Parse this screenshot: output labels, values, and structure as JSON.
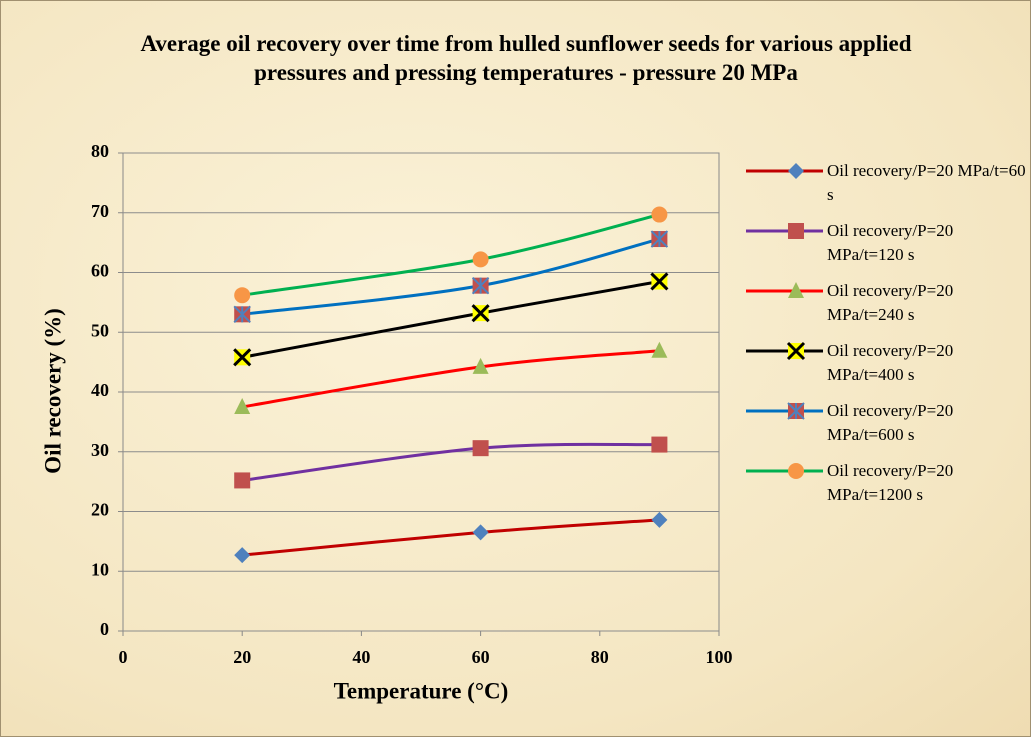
{
  "chart_data": {
    "type": "line",
    "title": "Average oil recovery over time from hulled sunflower seeds for various applied pressures and pressing temperatures - pressure 20 MPa",
    "x_label": "Temperature (°C)",
    "y_label": "Oil recovery (%)",
    "x": [
      20,
      60,
      90
    ],
    "xlim": [
      0,
      100
    ],
    "xticks": [
      0,
      20,
      40,
      60,
      80,
      100
    ],
    "ylim": [
      0,
      80
    ],
    "yticks": [
      0,
      10,
      20,
      30,
      40,
      50,
      60,
      70,
      80
    ],
    "grid": true,
    "smooth": true,
    "legend": "right",
    "series": [
      {
        "name": "Oil recovery/P=20 MPa/t=60 s",
        "color": "#c00000",
        "marker": "diamond",
        "marker_color": "#4f81bd",
        "values": [
          12.7,
          16.5,
          18.6
        ]
      },
      {
        "name": "Oil recovery/P=20 MPa/t=120 s",
        "color": "#7030a0",
        "marker": "square",
        "marker_color": "#c0504d",
        "values": [
          25.2,
          30.6,
          31.2
        ]
      },
      {
        "name": "Oil recovery/P=20 MPa/t=240 s",
        "color": "#ff0000",
        "marker": "triangle",
        "marker_color": "#9bbb59",
        "values": [
          37.5,
          44.2,
          46.9
        ]
      },
      {
        "name": "Oil recovery/P=20 MPa/t=400 s",
        "color": "#000000",
        "marker": "x",
        "marker_color": "#ffff00",
        "values": [
          45.8,
          53.2,
          58.5
        ]
      },
      {
        "name": "Oil recovery/P=20 MPa/t=600 s",
        "color": "#0070c0",
        "marker": "star",
        "marker_color": "#c0504d",
        "values": [
          53.0,
          57.8,
          65.6
        ]
      },
      {
        "name": "Oil recovery/P=20 MPa/t=1200 s",
        "color": "#00b050",
        "marker": "circle",
        "marker_color": "#f79646",
        "values": [
          56.2,
          62.2,
          69.7
        ]
      }
    ]
  }
}
